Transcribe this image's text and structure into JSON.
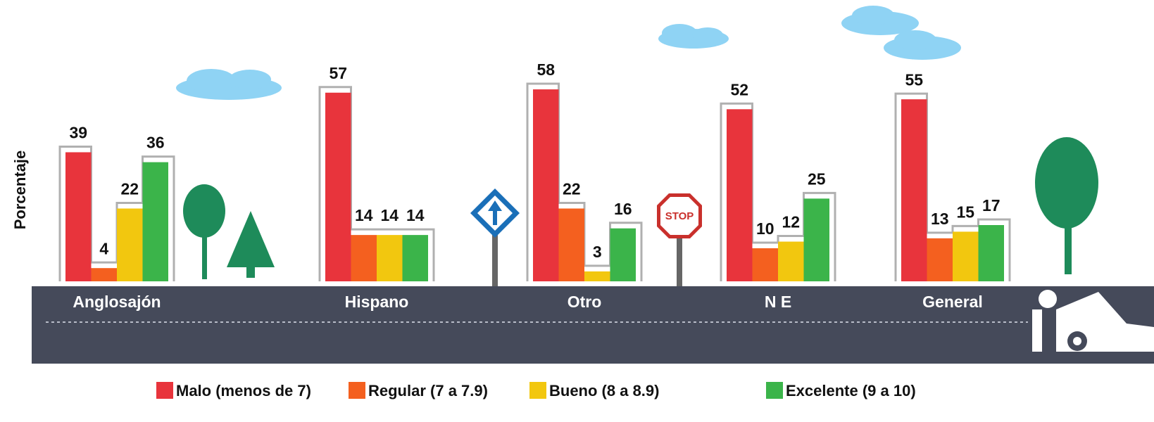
{
  "chart_data": {
    "type": "bar",
    "ylabel": "Porcentaje",
    "categories": [
      "Anglosajón",
      "Hispano",
      "Otro",
      "N E",
      "General"
    ],
    "series": [
      {
        "name": "Malo (menos de 7)",
        "color": "#e8343c",
        "values": [
          39,
          57,
          58,
          52,
          55
        ]
      },
      {
        "name": "Regular (7 a 7.9)",
        "color": "#f4601f",
        "values": [
          4,
          14,
          22,
          10,
          13
        ]
      },
      {
        "name": "Bueno (8 a 8.9)",
        "color": "#f2c70f",
        "values": [
          22,
          14,
          3,
          12,
          15
        ]
      },
      {
        "name": "Excelente (9 a 10)",
        "color": "#3bb44a",
        "values": [
          36,
          14,
          16,
          25,
          17
        ]
      }
    ],
    "ylim": [
      0,
      85
    ]
  }
}
